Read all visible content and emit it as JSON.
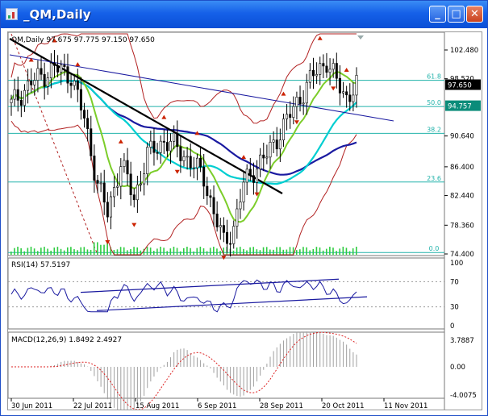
{
  "window": {
    "title": "_QM,Daily",
    "minimize_label": "_",
    "maximize_label": "□",
    "close_label": "✕"
  },
  "main_panel": {
    "info_line": "QM,Daily  97.675 97.775 97.150 97.650",
    "fib_levels": [
      {
        "label": "61.8",
        "value": 98.3
      },
      {
        "label": "50.0",
        "value": 94.7
      },
      {
        "label": "38.2",
        "value": 91.0
      },
      {
        "label": "23.6",
        "value": 84.3
      },
      {
        "label": "0.0",
        "value": 74.6
      }
    ],
    "price_ticks": [
      "102.480",
      "98.520",
      "90.640",
      "86.400",
      "82.440",
      "78.360",
      "74.400"
    ],
    "last_price_label": "97.650",
    "ma_price_label": "94.757"
  },
  "rsi_panel": {
    "info_line": "RSI(14) 57.5197",
    "levels": [
      "100",
      "70",
      "30",
      "0"
    ]
  },
  "macd_panel": {
    "info_line": "MACD(12,26,9) 1.8492 2.4927",
    "levels": [
      "3.7887",
      "0.00",
      "-4.0075"
    ]
  },
  "x_axis": {
    "dates": [
      "30 Jun 2011",
      "22 Jul 2011",
      "15 Aug 2011",
      "6 Sep 2011",
      "28 Sep 2011",
      "20 Oct 2011",
      "11 Nov 2011"
    ]
  },
  "colors": {
    "candles": "#000000",
    "bollinger": "#b22222",
    "fib": "#20b2aa",
    "ma_fast": "#7ccd2a",
    "ma_mid": "#00ced1",
    "ma_slow": "#1a1aa0",
    "trendline": "#000000",
    "volume": "#2ecc40",
    "fractal_arrows": "#cc2200",
    "indicator_line": "#1a1aa0",
    "macd_hist": "#a0a0a0",
    "macd_signal": "#dd2222"
  }
}
